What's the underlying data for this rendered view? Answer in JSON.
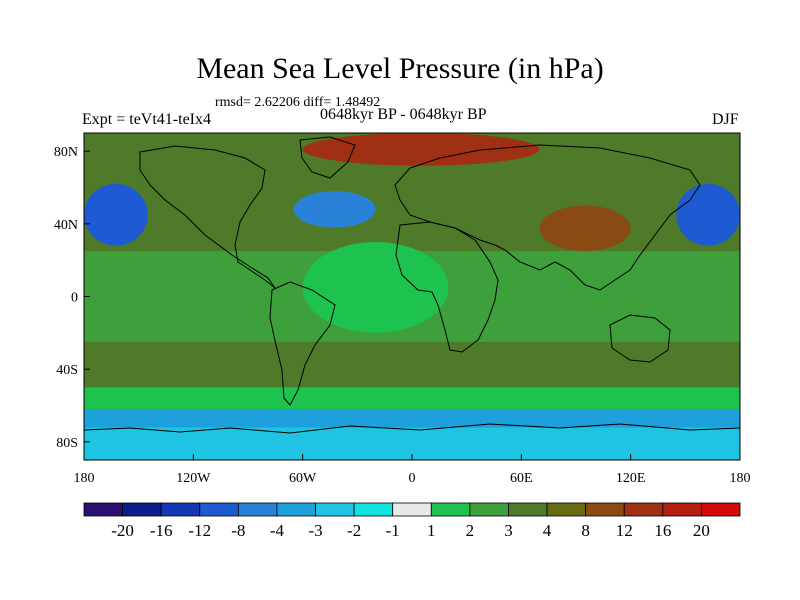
{
  "chart_data": {
    "type": "filled-contour-map",
    "title": "Mean Sea Level Pressure (in hPa)",
    "subtitle": "rmsd= 2.62206 diff= 1.48492",
    "period": "0648kyr BP - 0648kyr BP",
    "experiment": "Expt = teVt41-teIx4",
    "season": "DJF",
    "projection": "cylindrical-equidistant",
    "lon_range": [
      -180,
      180
    ],
    "lat_range": [
      -90,
      90
    ],
    "x_ticks": [
      {
        "value": -180,
        "label": "180"
      },
      {
        "value": -120,
        "label": "120W"
      },
      {
        "value": -60,
        "label": "60W"
      },
      {
        "value": 0,
        "label": "0"
      },
      {
        "value": 60,
        "label": "60E"
      },
      {
        "value": 120,
        "label": "120E"
      },
      {
        "value": 180,
        "label": "180"
      }
    ],
    "y_ticks": [
      {
        "value": 80,
        "label": "80N"
      },
      {
        "value": 40,
        "label": "40N"
      },
      {
        "value": 0,
        "label": "0"
      },
      {
        "value": -40,
        "label": "40S"
      },
      {
        "value": -80,
        "label": "80S"
      }
    ],
    "colorbar": {
      "labels": [
        "-20",
        "-16",
        "-12",
        "-8",
        "-4",
        "-3",
        "-2",
        "-1",
        "1",
        "2",
        "3",
        "4",
        "8",
        "12",
        "16",
        "20"
      ],
      "colors": [
        "#2a1070",
        "#0a1e8c",
        "#1438b4",
        "#1e5ad2",
        "#2a82d8",
        "#1ea0dc",
        "#1ec4e2",
        "#10e2e2",
        "#e8e8e8",
        "#1ec24e",
        "#3ea03a",
        "#4e7a2a",
        "#6a6a10",
        "#8a4a14",
        "#a03014",
        "#b41e10",
        "#d20a0a"
      ]
    },
    "regions": [
      {
        "name": "background-anomaly",
        "lon": [
          -180,
          180
        ],
        "lat": [
          -90,
          90
        ],
        "level": "3"
      },
      {
        "name": "arctic-high",
        "lon": [
          -60,
          70
        ],
        "lat": [
          72,
          90
        ],
        "level": "12"
      },
      {
        "name": "north-pacific-low",
        "lon": [
          -180,
          -145
        ],
        "lat": [
          28,
          62
        ],
        "level": "-8"
      },
      {
        "name": "west-pacific-low",
        "lon": [
          145,
          180
        ],
        "lat": [
          28,
          62
        ],
        "level": "-8"
      },
      {
        "name": "north-atlantic-low",
        "lon": [
          -65,
          -20
        ],
        "lat": [
          38,
          58
        ],
        "level": "-4"
      },
      {
        "name": "tropical-band",
        "lon": [
          -180,
          180
        ],
        "lat": [
          -25,
          25
        ],
        "level": "2"
      },
      {
        "name": "equatorial-atlantic",
        "lon": [
          -60,
          20
        ],
        "lat": [
          -20,
          30
        ],
        "level": "1"
      },
      {
        "name": "asian-high",
        "lon": [
          70,
          120
        ],
        "lat": [
          25,
          50
        ],
        "level": "8"
      },
      {
        "name": "southern-ocean-ring",
        "lon": [
          -180,
          180
        ],
        "lat": [
          -62,
          -50
        ],
        "level": "1"
      },
      {
        "name": "antarctic-margin",
        "lon": [
          -180,
          180
        ],
        "lat": [
          -72,
          -62
        ],
        "level": "-3"
      },
      {
        "name": "antarctica",
        "lon": [
          -180,
          180
        ],
        "lat": [
          -90,
          -72
        ],
        "level": "-2"
      }
    ]
  }
}
